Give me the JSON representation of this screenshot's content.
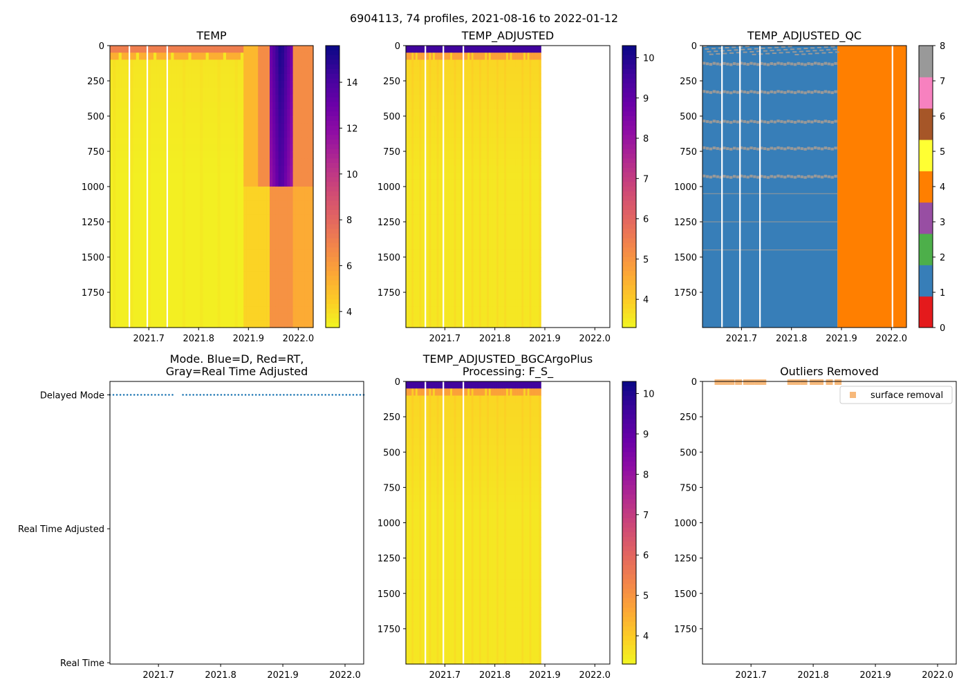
{
  "figure": {
    "suptitle": "6904113, 74 profiles, 2021-08-16 to 2022-01-12"
  },
  "colors": {
    "plasma": [
      "#0d0887",
      "#41049d",
      "#6a00a8",
      "#8f0da4",
      "#b12a90",
      "#cc4778",
      "#e16462",
      "#f2844b",
      "#fca636",
      "#fcce25",
      "#f0f921"
    ],
    "qc": [
      "#e41a1c",
      "#377eb8",
      "#4daf4a",
      "#984ea3",
      "#ff7f00",
      "#ffff33",
      "#a65628",
      "#f781bf",
      "#999999"
    ],
    "mode_line": "#1f77b4",
    "surface_marker": "#f7b97b"
  },
  "chart_data": [
    {
      "id": "temp",
      "type": "heatmap",
      "title": "TEMP",
      "x_ticks": [
        "2021.7",
        "2021.8",
        "2021.9",
        "2022.0"
      ],
      "x_tick_values": [
        2021.7,
        2021.8,
        2021.9,
        2022.0
      ],
      "xlim": [
        2021.622,
        2022.03
      ],
      "y_ticks": [
        "0",
        "250",
        "500",
        "750",
        "1000",
        "1250",
        "1500",
        "1750"
      ],
      "y_tick_values": [
        0,
        250,
        500,
        750,
        1000,
        1250,
        1500,
        1750
      ],
      "ylim": [
        2000,
        0
      ],
      "colorbar": {
        "cmap": "plasma",
        "range": [
          3.3,
          15.6
        ],
        "ticks": [
          "4",
          "6",
          "8",
          "10",
          "12",
          "14"
        ],
        "tick_values": [
          4,
          6,
          8,
          10,
          12,
          14
        ]
      },
      "gap_lines_x": [
        2021.661,
        2021.697,
        2021.737
      ],
      "data_extent_x": [
        2021.622,
        2022.03
      ],
      "description_values": {
        "surface_temp": 7.0,
        "deep_temp": 3.6,
        "warm_core_temp": 15.2,
        "warm_core_x": [
          2021.94,
          2021.99
        ]
      }
    },
    {
      "id": "temp_adjusted",
      "type": "heatmap",
      "title": "TEMP_ADJUSTED",
      "x_ticks": [
        "2021.7",
        "2021.8",
        "2021.9",
        "2022.0"
      ],
      "x_tick_values": [
        2021.7,
        2021.8,
        2021.9,
        2022.0
      ],
      "xlim": [
        2021.622,
        2022.03
      ],
      "y_ticks": [
        "0",
        "250",
        "500",
        "750",
        "1000",
        "1250",
        "1500",
        "1750"
      ],
      "y_tick_values": [
        0,
        250,
        500,
        750,
        1000,
        1250,
        1500,
        1750
      ],
      "ylim": [
        2000,
        0
      ],
      "colorbar": {
        "cmap": "plasma",
        "range": [
          3.3,
          10.3
        ],
        "ticks": [
          "4",
          "5",
          "6",
          "7",
          "8",
          "9",
          "10"
        ],
        "tick_values": [
          4,
          5,
          6,
          7,
          8,
          9,
          10
        ]
      },
      "gap_lines_x": [
        2021.661,
        2021.697,
        2021.737
      ],
      "data_extent_x": [
        2021.622,
        2021.892
      ]
    },
    {
      "id": "temp_adjusted_qc",
      "type": "heatmap",
      "title": "TEMP_ADJUSTED_QC",
      "x_ticks": [
        "2021.7",
        "2021.8",
        "2021.9",
        "2022.0"
      ],
      "x_tick_values": [
        2021.7,
        2021.8,
        2021.9,
        2022.0
      ],
      "xlim": [
        2021.622,
        2022.03
      ],
      "y_ticks": [
        "0",
        "250",
        "500",
        "750",
        "1000",
        "1250",
        "1500",
        "1750"
      ],
      "y_tick_values": [
        0,
        250,
        500,
        750,
        1000,
        1250,
        1500,
        1750
      ],
      "ylim": [
        2000,
        0
      ],
      "colorbar": {
        "cmap": "qc",
        "range": [
          0,
          8
        ],
        "ticks": [
          "0",
          "1",
          "2",
          "3",
          "4",
          "5",
          "6",
          "7",
          "8"
        ],
        "tick_values": [
          0,
          1,
          2,
          3,
          4,
          5,
          6,
          7,
          8
        ]
      },
      "gap_lines_x": [
        2021.661,
        2021.697,
        2021.737,
        2022.002
      ],
      "qc_regions": [
        {
          "x": [
            2021.622,
            2021.892
          ],
          "flag": 1
        },
        {
          "x": [
            2021.892,
            2022.03
          ],
          "flag": 4
        }
      ],
      "qc8_bands_depth": [
        120,
        320,
        530,
        720,
        920
      ]
    },
    {
      "id": "mode",
      "type": "scatter",
      "title": "Mode. Blue=D, Red=RT,\nGray=Real Time Adjusted",
      "title_lines": [
        "Mode. Blue=D, Red=RT,",
        "Gray=Real Time Adjusted"
      ],
      "x_ticks": [
        "2021.7",
        "2021.8",
        "2021.9",
        "2022.0"
      ],
      "x_tick_values": [
        2021.7,
        2021.8,
        2021.9,
        2022.0
      ],
      "xlim": [
        2021.622,
        2022.03
      ],
      "y_ticks": [
        "Delayed Mode",
        "Real Time Adjusted",
        "Real Time"
      ],
      "y_tick_values": [
        2,
        1,
        0
      ],
      "ylim": [
        -0.01,
        2.1
      ],
      "points_y": 2,
      "points_x_range": [
        2021.622,
        2022.03
      ],
      "point_count": 74
    },
    {
      "id": "temp_adjusted_bgc",
      "type": "heatmap",
      "title": "TEMP_ADJUSTED_BGCArgoPlus\nProcessing: F_S_",
      "title_lines": [
        "TEMP_ADJUSTED_BGCArgoPlus",
        "Processing: F_S_"
      ],
      "x_ticks": [
        "2021.7",
        "2021.8",
        "2021.9",
        "2022.0"
      ],
      "x_tick_values": [
        2021.7,
        2021.8,
        2021.9,
        2022.0
      ],
      "xlim": [
        2021.622,
        2022.03
      ],
      "y_ticks": [
        "0",
        "250",
        "500",
        "750",
        "1000",
        "1250",
        "1500",
        "1750"
      ],
      "y_tick_values": [
        0,
        250,
        500,
        750,
        1000,
        1250,
        1500,
        1750
      ],
      "ylim": [
        2000,
        0
      ],
      "colorbar": {
        "cmap": "plasma",
        "range": [
          3.3,
          10.3
        ],
        "ticks": [
          "4",
          "5",
          "6",
          "7",
          "8",
          "9",
          "10"
        ],
        "tick_values": [
          4,
          5,
          6,
          7,
          8,
          9,
          10
        ]
      },
      "gap_lines_x": [
        2021.661,
        2021.697,
        2021.737
      ],
      "data_extent_x": [
        2021.622,
        2021.892
      ]
    },
    {
      "id": "outliers",
      "type": "scatter",
      "title": "Outliers Removed",
      "x_ticks": [
        "2021.7",
        "2021.8",
        "2021.9",
        "2022.0"
      ],
      "x_tick_values": [
        2021.7,
        2021.8,
        2021.9,
        2022.0
      ],
      "xlim": [
        2021.622,
        2022.03
      ],
      "y_ticks": [
        "0",
        "250",
        "500",
        "750",
        "1000",
        "1250",
        "1500",
        "1750"
      ],
      "y_tick_values": [
        0,
        250,
        500,
        750,
        1000,
        1250,
        1500,
        1750
      ],
      "ylim": [
        2000,
        0
      ],
      "legend": {
        "label": "surface removal",
        "placement": "top-right"
      },
      "series": [
        {
          "name": "surface removal",
          "x": [
            2021.647,
            2021.657,
            2021.668,
            2021.68,
            2021.693,
            2021.7,
            2021.711,
            2021.719,
            2021.764,
            2021.774,
            2021.785,
            2021.8,
            2021.811,
            2021.826,
            2021.84
          ],
          "y": [
            5,
            5,
            5,
            5,
            5,
            5,
            5,
            5,
            5,
            5,
            5,
            5,
            5,
            5,
            5
          ]
        }
      ]
    }
  ]
}
